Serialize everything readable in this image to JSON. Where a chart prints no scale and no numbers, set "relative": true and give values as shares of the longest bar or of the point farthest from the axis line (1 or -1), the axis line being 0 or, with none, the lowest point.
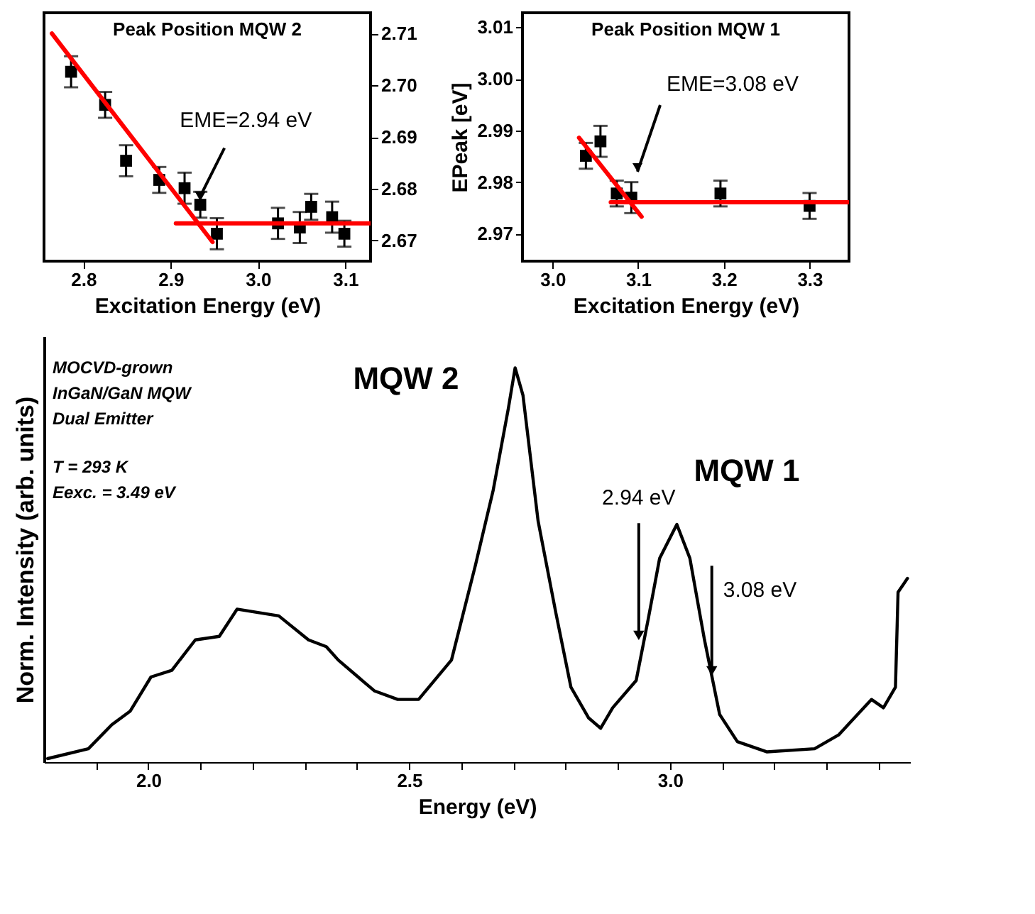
{
  "chart_data": [
    {
      "type": "scatter",
      "title": "Peak Position MQW 2",
      "xlabel": "Excitation Energy (eV)",
      "xlim": [
        2.755,
        3.129
      ],
      "xticks": [
        2.8,
        2.9,
        {
          "value": 3.0,
          "label": "3.0"
        },
        3.1
      ],
      "ylim": [
        2.666,
        2.714
      ],
      "yticks": [
        2.67,
        2.68,
        2.69,
        {
          "value": 2.7,
          "label": "2.70"
        },
        2.71
      ],
      "grid": false,
      "annotations": [
        {
          "text": "EME=2.94 eV",
          "x": 2.934,
          "y": 2.6769
        }
      ],
      "series": [
        {
          "type": "scatter",
          "marker": "square",
          "color": "#000000",
          "x": [
            2.786,
            2.825,
            2.849,
            2.887,
            2.916,
            2.934,
            2.953,
            3.023,
            3.048,
            3.061,
            3.085,
            3.099
          ],
          "values": [
            2.7026,
            2.6962,
            2.6854,
            2.6817,
            2.6801,
            2.6769,
            2.6713,
            2.6733,
            2.6725,
            2.6765,
            2.6745,
            2.6713
          ],
          "errors": [
            0.003,
            0.0025,
            0.003,
            0.0025,
            0.003,
            0.0025,
            0.003,
            0.003,
            0.003,
            0.0025,
            0.003,
            0.0025
          ]
        },
        {
          "type": "line",
          "color": "#ff0000",
          "x": [
            2.764,
            2.948
          ],
          "values": [
            2.71,
            2.6697
          ]
        },
        {
          "type": "line",
          "color": "#ff0000",
          "x": [
            2.906,
            3.129
          ],
          "values": [
            2.6733,
            2.6733
          ]
        }
      ]
    },
    {
      "type": "scatter",
      "title": "Peak Position MQW 1",
      "xlabel": "Excitation Energy (eV)",
      "ylabel": "EPeak [eV]",
      "xlim": [
        2.965,
        3.346
      ],
      "xticks": [
        {
          "value": 3.0,
          "label": "3.0"
        },
        3.1,
        3.2,
        3.3
      ],
      "ylim": [
        2.9647,
        3.0128
      ],
      "yticks": [
        2.97,
        2.98,
        2.99,
        {
          "value": 3.0,
          "label": "3.00"
        },
        3.01
      ],
      "grid": false,
      "annotations": [
        "EME=3.08 eV"
      ],
      "series": [
        {
          "type": "scatter",
          "marker": "square",
          "color": "#000000",
          "x": [
            3.039,
            3.056,
            3.075,
            3.092,
            3.196,
            3.3
          ],
          "values": [
            2.9851,
            2.9879,
            2.9778,
            2.977,
            2.9778,
            2.9754
          ],
          "errors": [
            0.0025,
            0.003,
            0.0025,
            0.003,
            0.0025,
            0.0025
          ]
        },
        {
          "type": "line",
          "color": "#ff0000",
          "x": [
            3.031,
            3.104
          ],
          "values": [
            2.9886,
            2.9733
          ]
        },
        {
          "type": "line",
          "color": "#ff0000",
          "x": [
            3.068,
            3.346
          ],
          "values": [
            2.9761,
            2.9761
          ]
        }
      ]
    },
    {
      "type": "line",
      "relative": true,
      "xlabel": "Energy (eV)",
      "ylabel": "Norm. Intensity (arb. units)",
      "xlim": [
        1.8,
        3.46
      ],
      "xticks": [
        {
          "value": 1.9,
          "label": null
        },
        {
          "value": 2.0,
          "label": "2.0"
        },
        {
          "value": 2.1,
          "label": null
        },
        {
          "value": 2.2,
          "label": null
        },
        {
          "value": 2.3,
          "label": null
        },
        {
          "value": 2.4,
          "label": null
        },
        2.5,
        {
          "value": 2.6,
          "label": null
        },
        {
          "value": 2.7,
          "label": null
        },
        {
          "value": 2.8,
          "label": null
        },
        {
          "value": 2.9,
          "label": null
        },
        {
          "value": 3.0,
          "label": "3.0"
        },
        {
          "value": 3.1,
          "label": null
        },
        {
          "value": 3.2,
          "label": null
        },
        {
          "value": 3.3,
          "label": null
        },
        {
          "value": 3.4,
          "label": null
        }
      ],
      "tick_labels": "x",
      "grid": false,
      "line_style": "solid",
      "annotations": [
        "MQW 2",
        "MQW 1",
        "MOCVD-grown",
        "InGaN/GaN MQW",
        "Dual Emitter",
        "T = 293 K",
        "Eexc. = 3.49 eV",
        {
          "text": "2.94 eV",
          "x": 2.94,
          "y": 0.3
        },
        {
          "text": "3.08 eV",
          "x": 3.08,
          "y": 0.21
        }
      ],
      "series": [
        {
          "color": "#000000",
          "x": [
            1.807,
            1.885,
            1.93,
            1.965,
            2.005,
            2.045,
            2.09,
            2.136,
            2.17,
            2.25,
            2.307,
            2.341,
            2.364,
            2.433,
            2.478,
            2.518,
            2.581,
            2.627,
            2.661,
            2.69,
            2.703,
            2.718,
            2.747,
            2.781,
            2.81,
            2.844,
            2.867,
            2.89,
            2.935,
            2.958,
            2.98,
            3.013,
            3.038,
            3.066,
            3.095,
            3.129,
            3.186,
            3.277,
            3.323,
            3.386,
            3.409,
            3.432,
            3.437,
            3.455
          ],
          "values": [
            0.009,
            0.034,
            0.095,
            0.129,
            0.216,
            0.233,
            0.31,
            0.319,
            0.388,
            0.371,
            0.31,
            0.293,
            0.259,
            0.181,
            0.159,
            0.159,
            0.259,
            0.5,
            0.69,
            0.897,
            1.0,
            0.931,
            0.612,
            0.379,
            0.19,
            0.112,
            0.086,
            0.138,
            0.207,
            0.362,
            0.517,
            0.603,
            0.517,
            0.31,
            0.121,
            0.052,
            0.026,
            0.034,
            0.069,
            0.159,
            0.138,
            0.19,
            0.431,
            0.466
          ]
        }
      ]
    }
  ]
}
